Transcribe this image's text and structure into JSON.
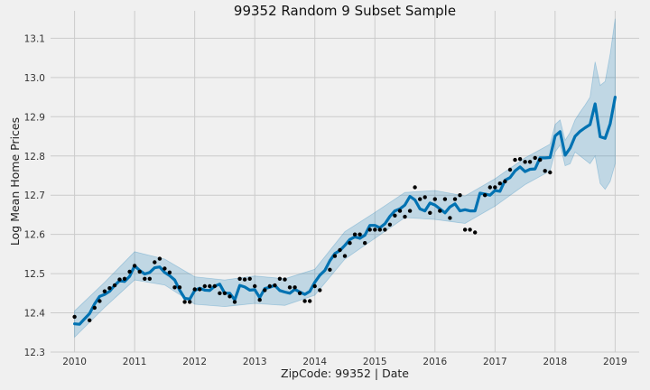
{
  "chart_data": {
    "type": "line",
    "title": "99352 Random 9 Subset Sample",
    "xlabel": "ZipCode: 99352 | Date",
    "ylabel": "Log Mean Home Prices",
    "xlim": [
      2009.6,
      2019.4
    ],
    "ylim": [
      12.3,
      13.17
    ],
    "x_ticks": [
      2010,
      2011,
      2012,
      2013,
      2014,
      2015,
      2016,
      2017,
      2018,
      2019
    ],
    "y_ticks": [
      12.3,
      12.4,
      12.5,
      12.6,
      12.7,
      12.8,
      12.9,
      13.0,
      13.1
    ],
    "grid": true,
    "colors": {
      "forecast_line": "#0072b2",
      "uncertainty_band": "#0072b2",
      "observed_points": "#000000",
      "background": "#f0f0f0",
      "grid": "#cbcbcb"
    },
    "series": [
      {
        "role": "forecast",
        "x": [
          2010.0,
          2010.083,
          2010.167,
          2010.25,
          2010.333,
          2010.417,
          2010.5,
          2010.583,
          2010.667,
          2010.75,
          2010.833,
          2010.917,
          2011.0,
          2011.083,
          2011.167,
          2011.25,
          2011.333,
          2011.417,
          2011.5,
          2011.583,
          2011.667,
          2011.75,
          2011.833,
          2011.917,
          2012.0,
          2012.083,
          2012.167,
          2012.25,
          2012.333,
          2012.417,
          2012.5,
          2012.583,
          2012.667,
          2012.75,
          2012.833,
          2012.917,
          2013.0,
          2013.083,
          2013.167,
          2013.25,
          2013.333,
          2013.417,
          2013.5,
          2013.583,
          2013.667,
          2013.75,
          2013.833,
          2013.917,
          2014.0,
          2014.083,
          2014.167,
          2014.25,
          2014.333,
          2014.417,
          2014.5,
          2014.583,
          2014.667,
          2014.75,
          2014.833,
          2014.917,
          2015.0,
          2015.083,
          2015.167,
          2015.25,
          2015.333,
          2015.417,
          2015.5,
          2015.583,
          2015.667,
          2015.75,
          2015.833,
          2015.917,
          2016.0,
          2016.083,
          2016.167,
          2016.25,
          2016.333,
          2016.417,
          2016.5,
          2016.583,
          2016.667,
          2016.75,
          2016.833,
          2016.917,
          2017.0,
          2017.083,
          2017.167,
          2017.25,
          2017.333,
          2017.417,
          2017.5,
          2017.583,
          2017.667,
          2017.75,
          2017.833,
          2017.917,
          2018.0,
          2018.083,
          2018.167,
          2018.25,
          2018.333,
          2018.417,
          2018.5,
          2018.583,
          2018.667,
          2018.75,
          2018.833,
          2018.917,
          2019.0
        ],
        "y": [
          12.372,
          12.371,
          12.385,
          12.398,
          12.423,
          12.442,
          12.447,
          12.455,
          12.47,
          12.482,
          12.48,
          12.493,
          12.52,
          12.508,
          12.499,
          12.503,
          12.515,
          12.517,
          12.503,
          12.495,
          12.484,
          12.458,
          12.437,
          12.435,
          12.457,
          12.463,
          12.458,
          12.457,
          12.468,
          12.473,
          12.45,
          12.45,
          12.433,
          12.47,
          12.466,
          12.458,
          12.459,
          12.439,
          12.462,
          12.465,
          12.47,
          12.457,
          12.453,
          12.45,
          12.46,
          12.453,
          12.447,
          12.455,
          12.478,
          12.496,
          12.508,
          12.533,
          12.551,
          12.559,
          12.572,
          12.587,
          12.594,
          12.59,
          12.598,
          12.623,
          12.623,
          12.617,
          12.627,
          12.646,
          12.66,
          12.665,
          12.675,
          12.697,
          12.688,
          12.665,
          12.66,
          12.68,
          12.675,
          12.665,
          12.655,
          12.67,
          12.678,
          12.66,
          12.663,
          12.66,
          12.66,
          12.705,
          12.703,
          12.7,
          12.712,
          12.71,
          12.738,
          12.745,
          12.762,
          12.772,
          12.76,
          12.766,
          12.767,
          12.795,
          12.795,
          12.796,
          12.851,
          12.862,
          12.802,
          12.82,
          12.85,
          12.863,
          12.872,
          12.88,
          12.933,
          12.849,
          12.845,
          12.882,
          12.95
        ]
      },
      {
        "role": "uncertainty_upper",
        "x": [
          2010.0,
          2010.5,
          2011.0,
          2011.5,
          2012.0,
          2012.5,
          2013.0,
          2013.5,
          2014.0,
          2014.5,
          2015.0,
          2015.5,
          2016.0,
          2016.5,
          2017.0,
          2017.5,
          2017.917,
          2018.0,
          2018.083,
          2018.167,
          2018.25,
          2018.333,
          2018.417,
          2018.5,
          2018.583,
          2018.667,
          2018.75,
          2018.833,
          2018.917,
          2019.0
        ],
        "y": [
          12.405,
          12.478,
          12.556,
          12.537,
          12.492,
          12.484,
          12.494,
          12.487,
          12.511,
          12.607,
          12.656,
          12.707,
          12.712,
          12.698,
          12.742,
          12.795,
          12.83,
          12.88,
          12.892,
          12.84,
          12.86,
          12.892,
          12.912,
          12.93,
          12.95,
          13.04,
          12.98,
          12.99,
          13.06,
          13.15
        ]
      },
      {
        "role": "uncertainty_lower",
        "x": [
          2010.0,
          2010.5,
          2011.0,
          2011.5,
          2012.0,
          2012.5,
          2013.0,
          2013.5,
          2014.0,
          2014.5,
          2015.0,
          2015.5,
          2016.0,
          2016.5,
          2017.0,
          2017.5,
          2017.917,
          2018.0,
          2018.083,
          2018.167,
          2018.25,
          2018.333,
          2018.417,
          2018.5,
          2018.583,
          2018.667,
          2018.75,
          2018.833,
          2018.917,
          2019.0
        ],
        "y": [
          12.338,
          12.414,
          12.484,
          12.471,
          12.422,
          12.416,
          12.424,
          12.419,
          12.445,
          12.537,
          12.59,
          12.643,
          12.638,
          12.628,
          12.672,
          12.727,
          12.762,
          12.81,
          12.828,
          12.775,
          12.78,
          12.81,
          12.8,
          12.79,
          12.78,
          12.8,
          12.73,
          12.715,
          12.735,
          12.78
        ]
      },
      {
        "role": "observed",
        "x": [
          2010.0,
          2010.25,
          2010.333,
          2010.417,
          2010.5,
          2010.583,
          2010.667,
          2010.75,
          2010.833,
          2010.917,
          2011.0,
          2011.083,
          2011.167,
          2011.25,
          2011.333,
          2011.417,
          2011.5,
          2011.583,
          2011.667,
          2011.75,
          2011.833,
          2011.917,
          2012.0,
          2012.083,
          2012.167,
          2012.25,
          2012.333,
          2012.417,
          2012.5,
          2012.583,
          2012.667,
          2012.75,
          2012.833,
          2012.917,
          2013.0,
          2013.083,
          2013.167,
          2013.25,
          2013.333,
          2013.417,
          2013.5,
          2013.583,
          2013.667,
          2013.75,
          2013.833,
          2013.917,
          2014.0,
          2014.083,
          2014.25,
          2014.333,
          2014.417,
          2014.5,
          2014.583,
          2014.667,
          2014.75,
          2014.833,
          2014.917,
          2015.0,
          2015.083,
          2015.167,
          2015.25,
          2015.333,
          2015.417,
          2015.5,
          2015.583,
          2015.667,
          2015.75,
          2015.833,
          2015.917,
          2016.0,
          2016.083,
          2016.167,
          2016.25,
          2016.333,
          2016.417,
          2016.5,
          2016.583,
          2016.667,
          2016.833,
          2016.917,
          2017.0,
          2017.083,
          2017.167,
          2017.25,
          2017.333,
          2017.417,
          2017.5,
          2017.583,
          2017.667,
          2017.75,
          2017.833,
          2017.917
        ],
        "y": [
          12.39,
          12.381,
          12.413,
          12.43,
          12.455,
          12.463,
          12.47,
          12.485,
          12.487,
          12.505,
          12.52,
          12.505,
          12.487,
          12.487,
          12.529,
          12.538,
          12.513,
          12.503,
          12.465,
          12.465,
          12.428,
          12.428,
          12.46,
          12.46,
          12.468,
          12.468,
          12.468,
          12.45,
          12.45,
          12.442,
          12.428,
          12.487,
          12.485,
          12.487,
          12.468,
          12.433,
          12.458,
          12.468,
          12.47,
          12.487,
          12.485,
          12.465,
          12.465,
          12.45,
          12.43,
          12.43,
          12.468,
          12.458,
          12.51,
          12.545,
          12.56,
          12.545,
          12.578,
          12.6,
          12.6,
          12.578,
          12.612,
          12.612,
          12.612,
          12.612,
          12.625,
          12.648,
          12.66,
          12.645,
          12.66,
          12.72,
          12.69,
          12.695,
          12.655,
          12.69,
          12.66,
          12.69,
          12.642,
          12.69,
          12.7,
          12.612,
          12.612,
          12.605,
          12.7,
          12.72,
          12.72,
          12.73,
          12.735,
          12.765,
          12.79,
          12.792,
          12.785,
          12.785,
          12.795,
          12.79,
          12.762,
          12.758
        ]
      }
    ]
  }
}
